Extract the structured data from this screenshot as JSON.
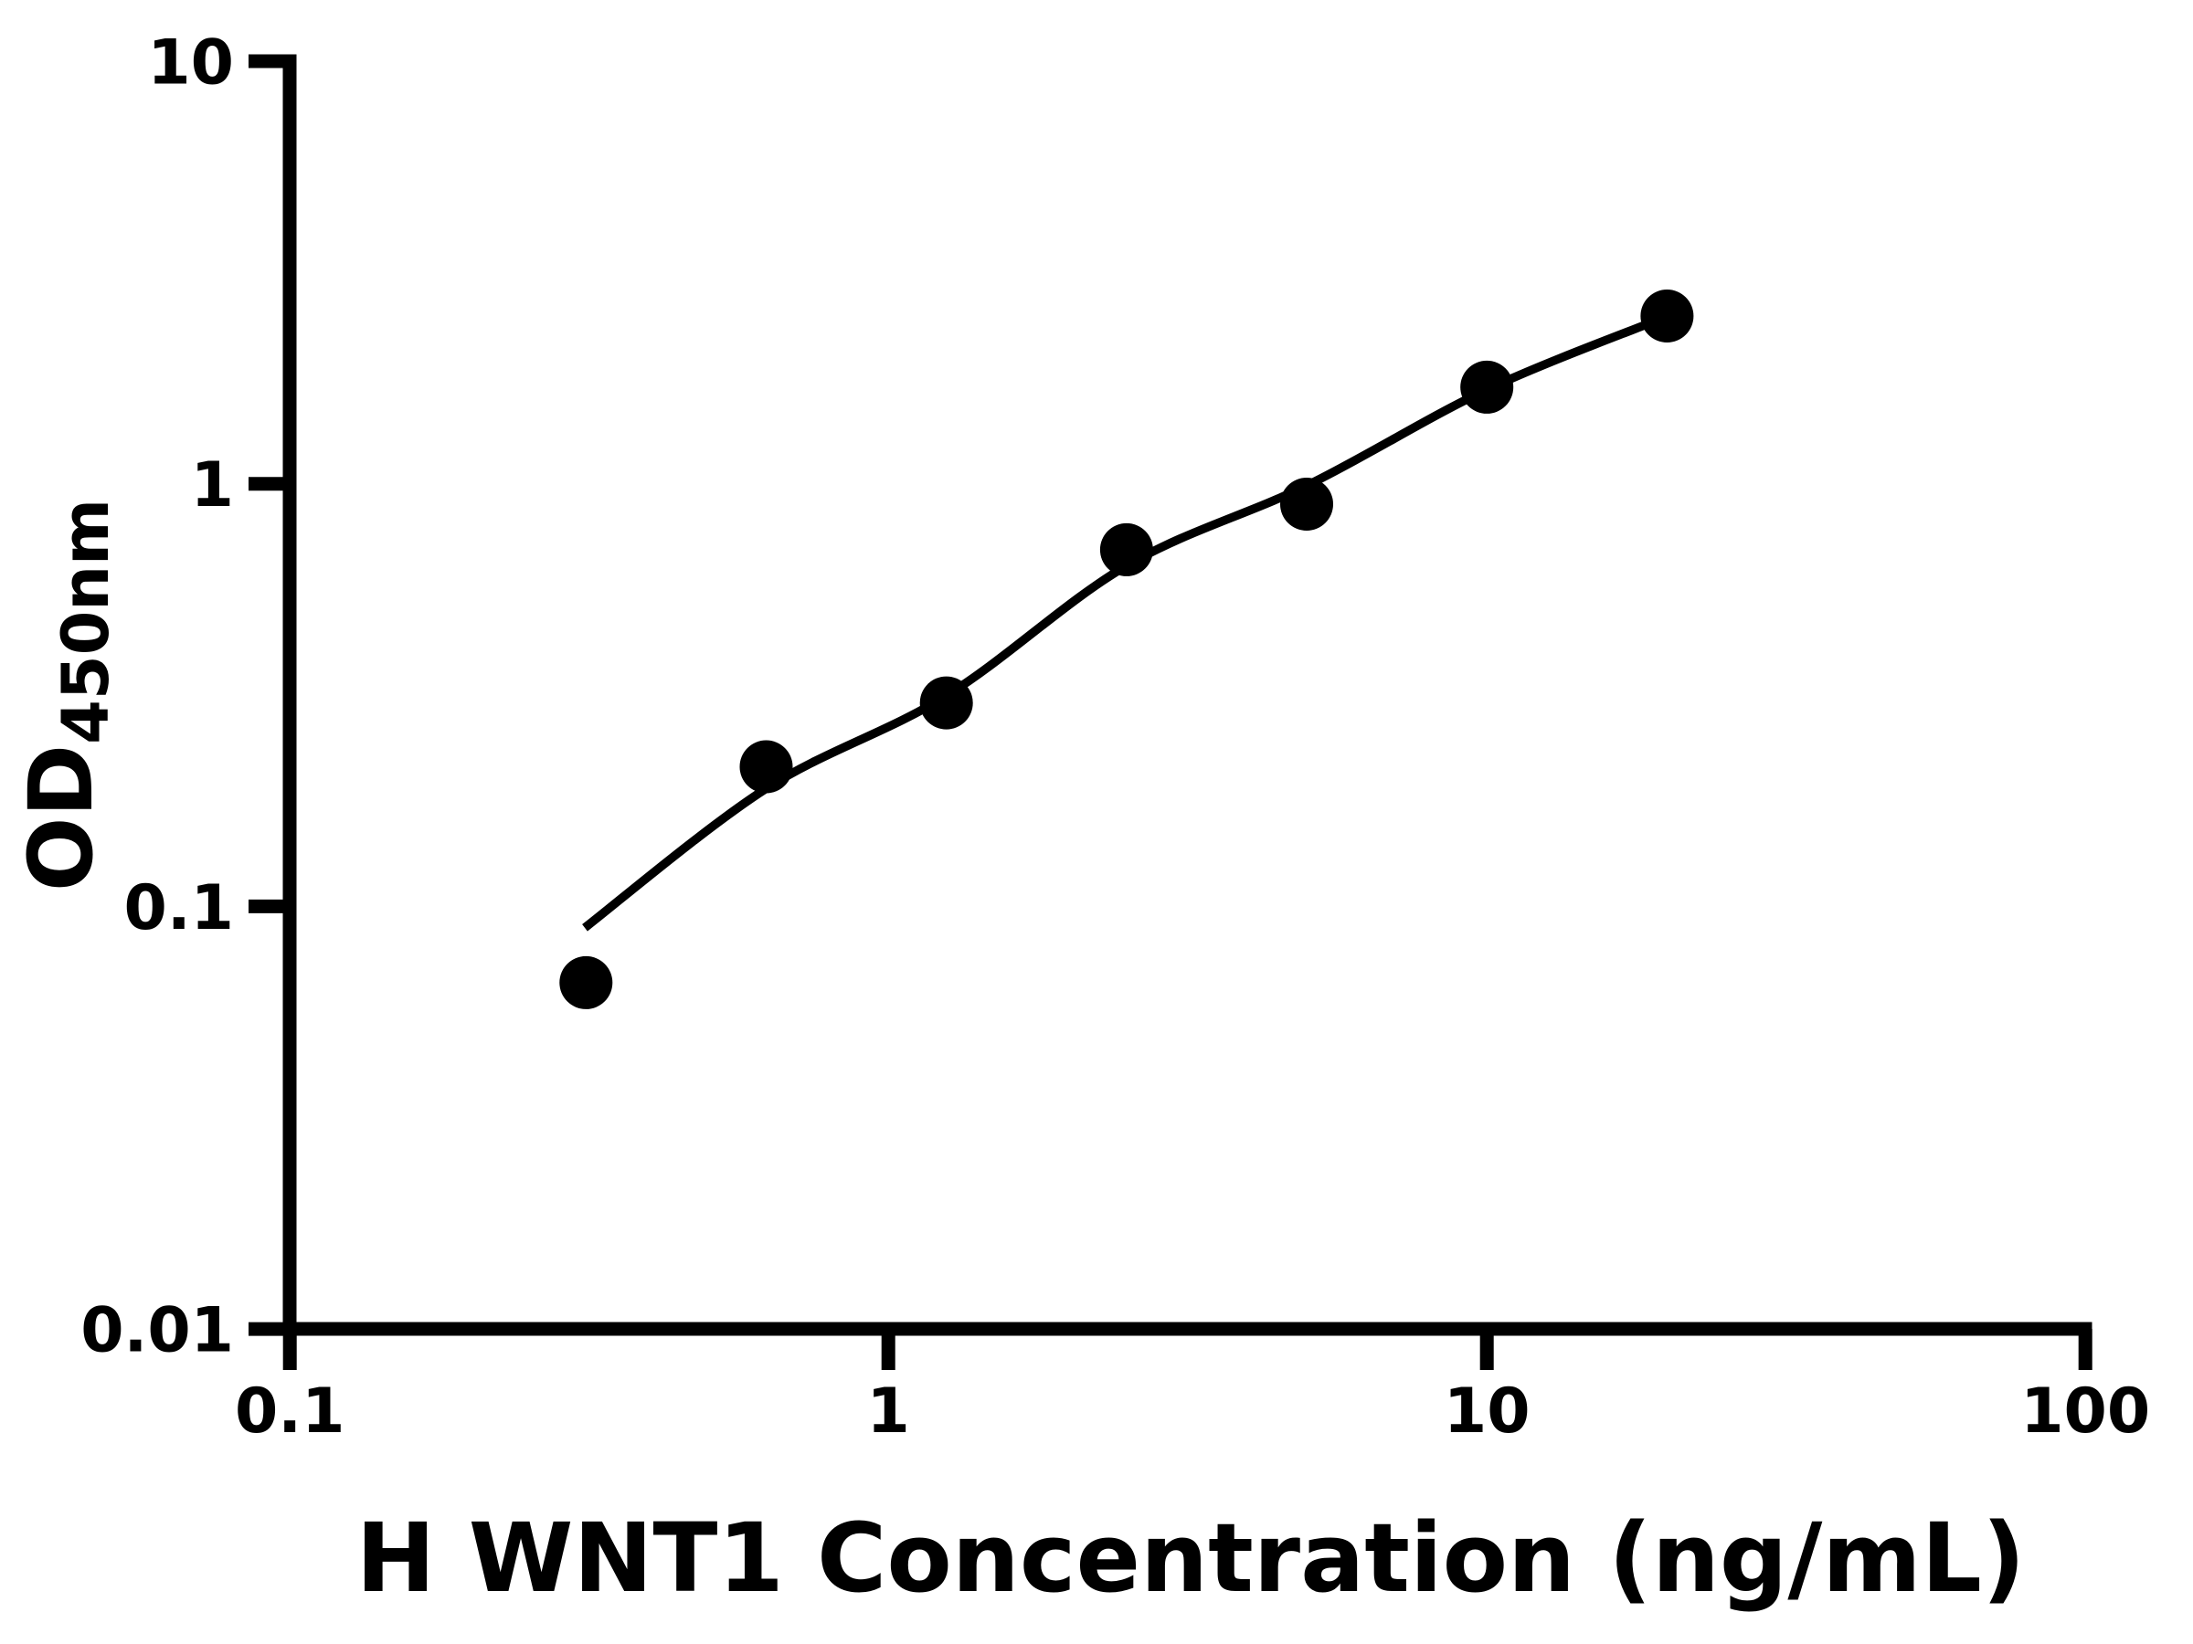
{
  "figure": {
    "background": "#ffffff",
    "foreground": "#000000"
  },
  "chart_data": {
    "type": "scatter",
    "title": "",
    "xlabel": "H WNT1 Concentration (ng/mL)",
    "ylabel_main": "OD",
    "ylabel_sub": "450nm",
    "x_scale": "log",
    "y_scale": "log",
    "xlim": [
      0.1,
      100
    ],
    "ylim": [
      0.01,
      10
    ],
    "grid": false,
    "legend": "none",
    "x_ticks": {
      "values": [
        0.1,
        1,
        10,
        100
      ],
      "labels": [
        "0.1",
        "1",
        "10",
        "100"
      ]
    },
    "y_ticks": {
      "values": [
        10,
        1,
        0.1,
        0.01
      ],
      "labels": [
        "10",
        "1",
        "0.1",
        "0.01"
      ]
    },
    "series": [
      {
        "name": "standard-points",
        "type": "scatter",
        "marker": "filled-circle",
        "color": "#000000",
        "points": [
          {
            "x": 0.3125,
            "y": 0.066
          },
          {
            "x": 0.625,
            "y": 0.214
          },
          {
            "x": 1.25,
            "y": 0.303
          },
          {
            "x": 2.5,
            "y": 0.698
          },
          {
            "x": 5,
            "y": 0.895
          },
          {
            "x": 10,
            "y": 1.693
          },
          {
            "x": 20,
            "y": 2.495
          }
        ]
      },
      {
        "name": "fit-curve",
        "type": "line",
        "color": "#000000",
        "points": [
          {
            "x": 0.311,
            "y": 0.089
          },
          {
            "x": 0.625,
            "y": 0.19
          },
          {
            "x": 1.25,
            "y": 0.315
          },
          {
            "x": 2.5,
            "y": 0.64
          },
          {
            "x": 5,
            "y": 0.99
          },
          {
            "x": 10,
            "y": 1.67
          },
          {
            "x": 20,
            "y": 2.49
          }
        ]
      }
    ]
  }
}
